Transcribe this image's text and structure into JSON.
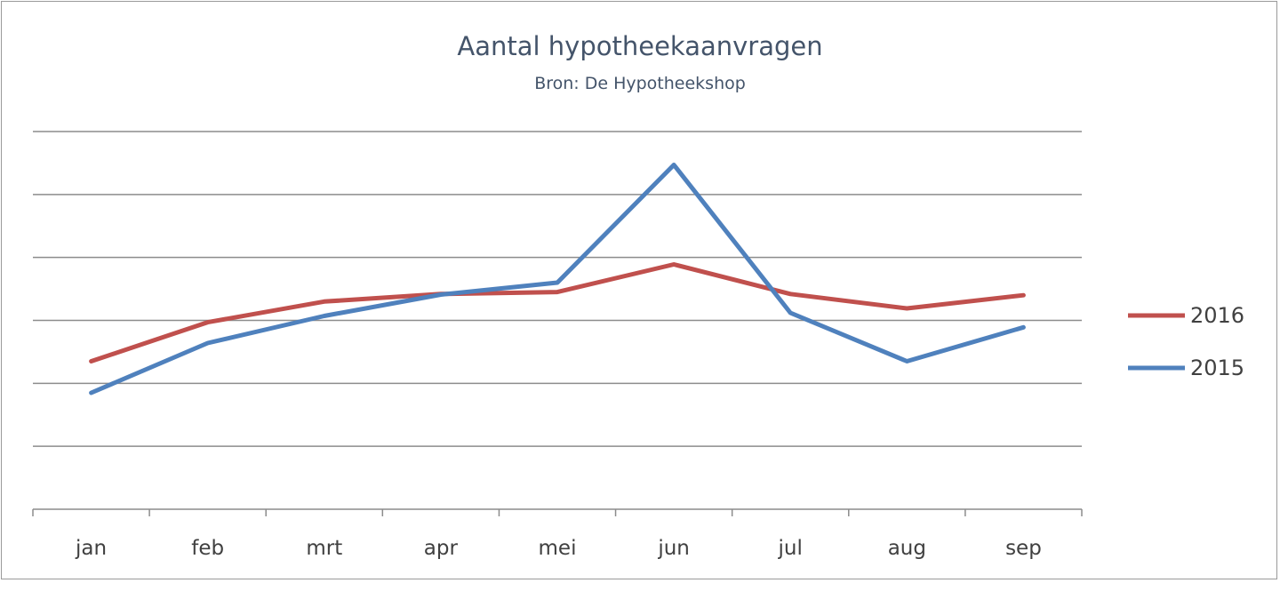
{
  "chart_data": {
    "type": "line",
    "title": "Aantal hypotheekaanvragen",
    "subtitle": "Bron: De Hypotheekshop",
    "categories": [
      "jan",
      "feb",
      "mrt",
      "apr",
      "mei",
      "jun",
      "jul",
      "aug",
      "sep"
    ],
    "ylim": [
      0,
      6
    ],
    "gridlines": [
      1,
      2,
      3,
      4,
      5,
      6
    ],
    "y_tick_labels": false,
    "series": [
      {
        "name": "2016",
        "color": "#c0504d",
        "values": [
          2.35,
          2.97,
          3.3,
          3.42,
          3.45,
          3.89,
          3.42,
          3.19,
          3.4
        ]
      },
      {
        "name": "2015",
        "color": "#4f81bd",
        "values": [
          1.85,
          2.64,
          3.07,
          3.41,
          3.6,
          5.47,
          3.12,
          2.35,
          2.89
        ]
      }
    ],
    "legend_position": "right",
    "grid": true
  }
}
